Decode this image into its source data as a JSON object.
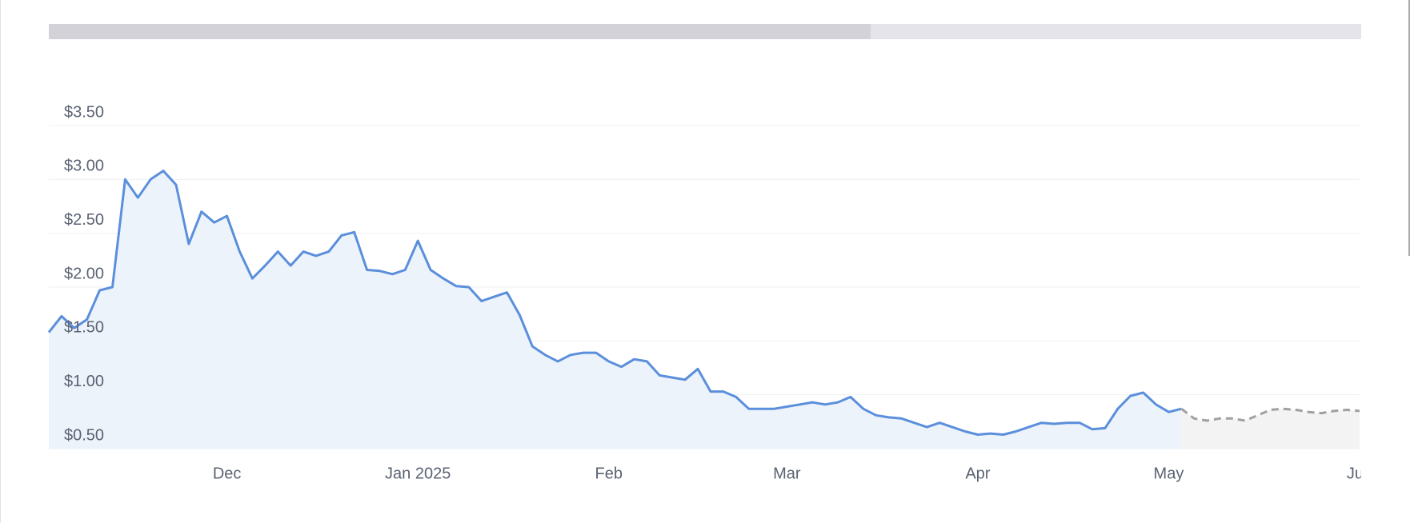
{
  "chart_data": {
    "type": "line",
    "categories": [
      null,
      null,
      null,
      null,
      null,
      null,
      null,
      null,
      null,
      null,
      null,
      null,
      null,
      null,
      "Dec",
      null,
      null,
      null,
      null,
      null,
      null,
      null,
      null,
      null,
      null,
      null,
      null,
      null,
      null,
      "Jan 2025",
      null,
      null,
      null,
      null,
      null,
      null,
      null,
      null,
      null,
      null,
      null,
      null,
      null,
      null,
      "Feb",
      null,
      null,
      null,
      null,
      null,
      null,
      null,
      null,
      null,
      null,
      null,
      null,
      null,
      "Mar",
      null,
      null,
      null,
      null,
      null,
      null,
      null,
      null,
      null,
      null,
      null,
      null,
      null,
      null,
      "Apr",
      null,
      null,
      null,
      null,
      null,
      null,
      null,
      null,
      null,
      null,
      null,
      null,
      null,
      null,
      "May",
      null,
      null,
      null,
      null,
      null,
      null,
      null,
      null,
      null,
      null,
      null,
      null,
      null,
      null,
      "Jun"
    ],
    "series": [
      {
        "color": "#5b8fdc",
        "fill": "#edf3fb",
        "dashed": false,
        "values": [
          1.58,
          1.73,
          1.62,
          1.7,
          1.97,
          2.0,
          3.0,
          2.83,
          3.0,
          3.08,
          2.95,
          2.4,
          2.7,
          2.6,
          2.66,
          2.33,
          2.08,
          2.2,
          2.33,
          2.2,
          2.33,
          2.29,
          2.33,
          2.48,
          2.51,
          2.16,
          2.15,
          2.12,
          2.16,
          2.43,
          2.16,
          2.08,
          2.01,
          2.0,
          1.87,
          1.91,
          1.95,
          1.74,
          1.45,
          1.37,
          1.31,
          1.37,
          1.39,
          1.39,
          1.31,
          1.26,
          1.33,
          1.31,
          1.18,
          1.16,
          1.14,
          1.24,
          1.03,
          1.03,
          0.98,
          0.87,
          0.87,
          0.87,
          0.89,
          0.91,
          0.93,
          0.91,
          0.93,
          0.98,
          0.87,
          0.81,
          0.79,
          0.78,
          0.74,
          0.7,
          0.74,
          0.7,
          0.66,
          0.63,
          0.64,
          0.63,
          0.66,
          0.7,
          0.74,
          0.73,
          0.74,
          0.74,
          0.68,
          0.69,
          0.87,
          0.99,
          1.02,
          0.91,
          0.84,
          0.87,
          null,
          null,
          null,
          null,
          null,
          null,
          null,
          null,
          null,
          null,
          null,
          null,
          null,
          null
        ]
      },
      {
        "color": "#a0a0a0",
        "fill": "#f3f3f3",
        "dashed": true,
        "values": [
          null,
          null,
          null,
          null,
          null,
          null,
          null,
          null,
          null,
          null,
          null,
          null,
          null,
          null,
          null,
          null,
          null,
          null,
          null,
          null,
          null,
          null,
          null,
          null,
          null,
          null,
          null,
          null,
          null,
          null,
          null,
          null,
          null,
          null,
          null,
          null,
          null,
          null,
          null,
          null,
          null,
          null,
          null,
          null,
          null,
          null,
          null,
          null,
          null,
          null,
          null,
          null,
          null,
          null,
          null,
          null,
          null,
          null,
          null,
          null,
          null,
          null,
          null,
          null,
          null,
          null,
          null,
          null,
          null,
          null,
          null,
          null,
          null,
          null,
          null,
          null,
          null,
          null,
          null,
          null,
          null,
          null,
          null,
          null,
          null,
          null,
          null,
          null,
          null,
          0.87,
          0.78,
          0.76,
          0.78,
          0.78,
          0.76,
          0.81,
          0.86,
          0.87,
          0.86,
          0.84,
          0.83,
          0.85,
          0.86,
          0.85
        ]
      }
    ],
    "ylim": [
      0.5,
      3.5
    ],
    "yticks": [
      {
        "value": 0.5,
        "label": "$0.50"
      },
      {
        "value": 1,
        "label": "$1.00"
      },
      {
        "value": 1.5,
        "label": "$1.50"
      },
      {
        "value": 2,
        "label": "$2.00"
      },
      {
        "value": 2.5,
        "label": "$2.50"
      },
      {
        "value": 3,
        "label": "$3.00"
      },
      {
        "value": 3.5,
        "label": "$3.50"
      }
    ],
    "grid": true
  }
}
